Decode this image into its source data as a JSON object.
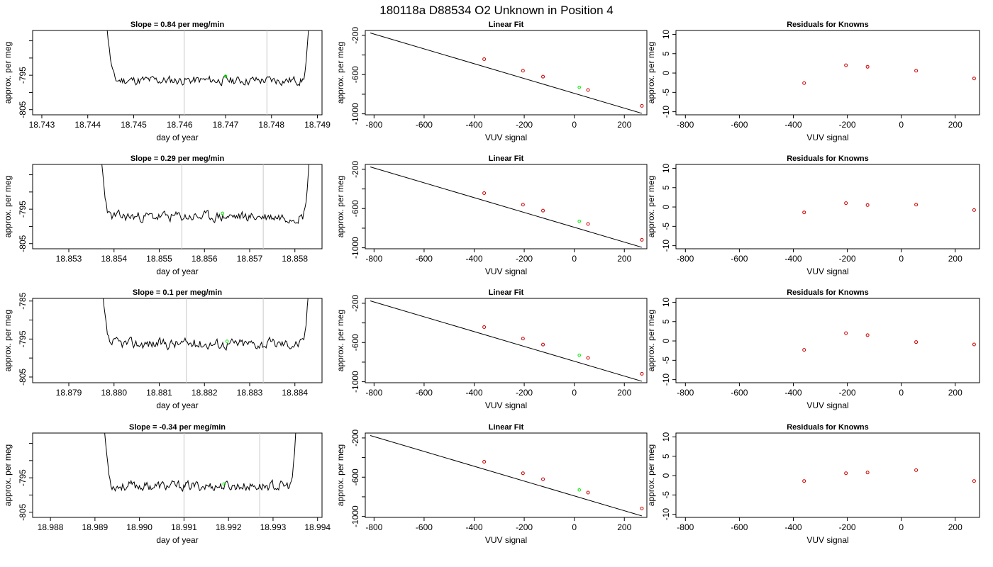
{
  "page_title": "180118a     D88534   O2 Unknown in Position  4",
  "labels": {
    "ts_ylabel": "approx. per meg",
    "ts_xlabel": "day of year",
    "fit_title": "Linear Fit",
    "fit_ylabel": "approx. per meg",
    "fit_xlabel": "VUV signal",
    "res_title": "Residuals for Knowns",
    "res_ylabel": "approx. per meg",
    "res_xlabel": "VUV signal"
  },
  "colors": {
    "line": "#000000",
    "unknown": "#00ee00",
    "known": "#cc0000",
    "vline": "#c8c8c8"
  },
  "chart_data": [
    {
      "type": "line",
      "panel": "timeseries",
      "row": 1,
      "title": "Slope =  0.84  per meg/min",
      "xlim": [
        18.7428,
        18.7491
      ],
      "ylim": [
        -806.5,
        -782
      ],
      "xticks": [
        18.743,
        18.744,
        18.745,
        18.746,
        18.747,
        18.748,
        18.749
      ],
      "xtick_labels": [
        "18.743",
        "18.744",
        "18.745",
        "18.746",
        "18.747",
        "18.748",
        "18.749"
      ],
      "yticks": [
        -805,
        -800,
        -795,
        -790,
        -785
      ],
      "ytick_labels": [
        "-805",
        "",
        "-795",
        "",
        ""
      ],
      "x_start": 18.7443,
      "x_end": 18.7489,
      "center": -796.5,
      "amp": 1.3,
      "seed": 11,
      "vlines": [
        18.7461,
        18.7479
      ],
      "unknown_point": {
        "x": 18.747,
        "y": -795.3
      }
    },
    {
      "type": "scatter",
      "panel": "linear_fit",
      "row": 1,
      "xlim": [
        -835,
        290
      ],
      "ylim": [
        -1010,
        -150
      ],
      "xticks": [
        -800,
        -600,
        -400,
        -200,
        0,
        200
      ],
      "xtick_labels": [
        "-800",
        "-600",
        "-400",
        "-200",
        "0",
        "200"
      ],
      "yticks": [
        -200,
        -400,
        -600,
        -800,
        -1000
      ],
      "ytick_labels": [
        "-200",
        "",
        "-600",
        "",
        "-1000"
      ],
      "fit_line": {
        "x": [
          -815,
          270
        ],
        "y": [
          -175,
          -995
        ]
      },
      "known_points": {
        "x": [
          -360,
          -205,
          -125,
          55,
          270
        ],
        "y": [
          -443,
          -560,
          -621,
          -757,
          -919
        ]
      },
      "unknown_point": {
        "x": 20,
        "y": -730
      }
    },
    {
      "type": "scatter",
      "panel": "residuals",
      "row": 1,
      "xlim": [
        -835,
        290
      ],
      "ylim": [
        -10.8,
        11
      ],
      "xticks": [
        -800,
        -600,
        -400,
        -200,
        0,
        200
      ],
      "xtick_labels": [
        "-800",
        "-600",
        "-400",
        "-200",
        "0",
        "200"
      ],
      "yticks": [
        -10,
        -5,
        0,
        5,
        10
      ],
      "ytick_labels": [
        "-10",
        "-5",
        "0",
        "5",
        "10"
      ],
      "points": {
        "x": [
          -360,
          -205,
          -125,
          55,
          270
        ],
        "y": [
          -2.6,
          2.0,
          1.6,
          0.6,
          -1.4
        ]
      }
    },
    {
      "type": "line",
      "panel": "timeseries",
      "row": 2,
      "title": "Slope =  0.29  per meg/min",
      "xlim": [
        18.8522,
        18.8586
      ],
      "ylim": [
        -806.5,
        -782
      ],
      "xticks": [
        18.853,
        18.854,
        18.855,
        18.856,
        18.857,
        18.858
      ],
      "xtick_labels": [
        "18.853",
        "18.854",
        "18.855",
        "18.856",
        "18.857",
        "18.858"
      ],
      "yticks": [
        -805,
        -800,
        -795,
        -790,
        -785
      ],
      "ytick_labels": [
        "-805",
        "",
        "-795",
        "",
        ""
      ],
      "x_start": 18.8536,
      "x_end": 18.8584,
      "center": -797.2,
      "amp": 1.5,
      "seed": 23,
      "vlines": [
        18.8555,
        18.8573
      ],
      "unknown_point": {
        "x": 18.8564,
        "y": -796.2
      }
    },
    {
      "type": "scatter",
      "panel": "linear_fit",
      "row": 2,
      "xlim": [
        -835,
        290
      ],
      "ylim": [
        -1010,
        -150
      ],
      "xticks": [
        -800,
        -600,
        -400,
        -200,
        0,
        200
      ],
      "xtick_labels": [
        "-800",
        "-600",
        "-400",
        "-200",
        "0",
        "200"
      ],
      "yticks": [
        -200,
        -400,
        -600,
        -800,
        -1000
      ],
      "ytick_labels": [
        "-200",
        "",
        "-600",
        "",
        "-1000"
      ],
      "fit_line": {
        "x": [
          -815,
          270
        ],
        "y": [
          -175,
          -995
        ]
      },
      "known_points": {
        "x": [
          -360,
          -205,
          -125,
          55,
          270
        ],
        "y": [
          -443,
          -560,
          -621,
          -757,
          -919
        ]
      },
      "unknown_point": {
        "x": 20,
        "y": -730
      }
    },
    {
      "type": "scatter",
      "panel": "residuals",
      "row": 2,
      "xlim": [
        -835,
        290
      ],
      "ylim": [
        -10.8,
        11
      ],
      "xticks": [
        -800,
        -600,
        -400,
        -200,
        0,
        200
      ],
      "xtick_labels": [
        "-800",
        "-600",
        "-400",
        "-200",
        "0",
        "200"
      ],
      "yticks": [
        -10,
        -5,
        0,
        5,
        10
      ],
      "ytick_labels": [
        "-10",
        "-5",
        "0",
        "5",
        "10"
      ],
      "points": {
        "x": [
          -360,
          -205,
          -125,
          55,
          270
        ],
        "y": [
          -1.4,
          1.0,
          0.5,
          0.6,
          -0.8
        ]
      }
    },
    {
      "type": "line",
      "panel": "timeseries",
      "row": 3,
      "title": "Slope =  0.1  per meg/min",
      "xlim": [
        18.8782,
        18.8846
      ],
      "ylim": [
        -806.5,
        -784.3
      ],
      "xticks": [
        18.879,
        18.88,
        18.881,
        18.882,
        18.883,
        18.884
      ],
      "xtick_labels": [
        "18.879",
        "18.880",
        "18.881",
        "18.882",
        "18.883",
        "18.884"
      ],
      "yticks": [
        -805,
        -800,
        -795,
        -790,
        -785
      ],
      "ytick_labels": [
        "-805",
        "",
        "-795",
        "",
        "-785"
      ],
      "x_start": 18.8796,
      "x_end": 18.8844,
      "center": -796.2,
      "amp": 1.4,
      "seed": 37,
      "vlines": [
        18.8816,
        18.8833
      ],
      "unknown_point": {
        "x": 18.8825,
        "y": -795.6
      }
    },
    {
      "type": "scatter",
      "panel": "linear_fit",
      "row": 3,
      "xlim": [
        -835,
        290
      ],
      "ylim": [
        -1010,
        -150
      ],
      "xticks": [
        -800,
        -600,
        -400,
        -200,
        0,
        200
      ],
      "xtick_labels": [
        "-800",
        "-600",
        "-400",
        "-200",
        "0",
        "200"
      ],
      "yticks": [
        -200,
        -400,
        -600,
        -800,
        -1000
      ],
      "ytick_labels": [
        "-200",
        "",
        "-600",
        "",
        "-1000"
      ],
      "fit_line": {
        "x": [
          -815,
          270
        ],
        "y": [
          -175,
          -995
        ]
      },
      "known_points": {
        "x": [
          -360,
          -205,
          -125,
          55,
          270
        ],
        "y": [
          -443,
          -560,
          -621,
          -757,
          -919
        ]
      },
      "unknown_point": {
        "x": 20,
        "y": -730
      }
    },
    {
      "type": "scatter",
      "panel": "residuals",
      "row": 3,
      "xlim": [
        -835,
        290
      ],
      "ylim": [
        -10.8,
        11
      ],
      "xticks": [
        -800,
        -600,
        -400,
        -200,
        0,
        200
      ],
      "xtick_labels": [
        "-800",
        "-600",
        "-400",
        "-200",
        "0",
        "200"
      ],
      "yticks": [
        -10,
        -5,
        0,
        5,
        10
      ],
      "ytick_labels": [
        "-10",
        "-5",
        "0",
        "5",
        "10"
      ],
      "points": {
        "x": [
          -360,
          -205,
          -125,
          55,
          270
        ],
        "y": [
          -2.3,
          2.0,
          1.5,
          -0.3,
          -0.9
        ]
      }
    },
    {
      "type": "line",
      "panel": "timeseries",
      "row": 4,
      "title": "Slope =  -0.34  per meg/min",
      "xlim": [
        18.9876,
        18.9941
      ],
      "ylim": [
        -806.5,
        -782
      ],
      "xticks": [
        18.988,
        18.989,
        18.99,
        18.991,
        18.992,
        18.993,
        18.994
      ],
      "xtick_labels": [
        "18.988",
        "18.989",
        "18.990",
        "18.991",
        "18.992",
        "18.993",
        "18.994"
      ],
      "yticks": [
        -805,
        -800,
        -795,
        -790,
        -785
      ],
      "ytick_labels": [
        "-805",
        "",
        "-795",
        "",
        ""
      ],
      "x_start": 18.9891,
      "x_end": 18.9936,
      "center": -797.4,
      "amp": 1.4,
      "seed": 53,
      "vlines": [
        18.991,
        18.9927
      ],
      "unknown_point": {
        "x": 18.9919,
        "y": -796.8
      }
    },
    {
      "type": "scatter",
      "panel": "linear_fit",
      "row": 4,
      "xlim": [
        -835,
        290
      ],
      "ylim": [
        -1010,
        -150
      ],
      "xticks": [
        -800,
        -600,
        -400,
        -200,
        0,
        200
      ],
      "xtick_labels": [
        "-800",
        "-600",
        "-400",
        "-200",
        "0",
        "200"
      ],
      "yticks": [
        -200,
        -400,
        -600,
        -800,
        -1000
      ],
      "ytick_labels": [
        "-200",
        "",
        "-600",
        "",
        "-1000"
      ],
      "fit_line": {
        "x": [
          -815,
          270
        ],
        "y": [
          -175,
          -995
        ]
      },
      "known_points": {
        "x": [
          -360,
          -205,
          -125,
          55,
          270
        ],
        "y": [
          -443,
          -560,
          -621,
          -757,
          -919
        ]
      },
      "unknown_point": {
        "x": 20,
        "y": -730
      }
    },
    {
      "type": "scatter",
      "panel": "residuals",
      "row": 4,
      "xlim": [
        -835,
        290
      ],
      "ylim": [
        -10.8,
        11
      ],
      "xticks": [
        -800,
        -600,
        -400,
        -200,
        0,
        200
      ],
      "xtick_labels": [
        "-800",
        "-600",
        "-400",
        "-200",
        "0",
        "200"
      ],
      "yticks": [
        -10,
        -5,
        0,
        5,
        10
      ],
      "ytick_labels": [
        "-10",
        "-5",
        "0",
        "5",
        "10"
      ],
      "points": {
        "x": [
          -360,
          -205,
          -125,
          55,
          270
        ],
        "y": [
          -1.4,
          0.6,
          0.8,
          1.4,
          -1.4
        ]
      }
    }
  ]
}
